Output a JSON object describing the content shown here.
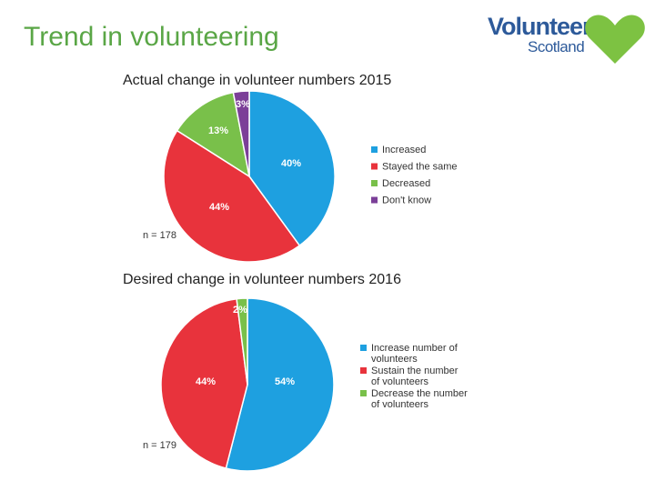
{
  "slide": {
    "title": "Trend in volunteering",
    "logo": {
      "line1": "Volunteer",
      "line2": "Scotland",
      "heart_color": "#7dc242",
      "text_color": "#2d5a9a"
    }
  },
  "chart_data": [
    {
      "type": "pie",
      "title": "Actual change in volunteer numbers 2015",
      "note": "n = 178",
      "slices": [
        {
          "label": "Increased",
          "value": 40,
          "display": "40%",
          "color": "#1ea0e0"
        },
        {
          "label": "Stayed the same",
          "value": 44,
          "display": "44%",
          "color": "#e8333c"
        },
        {
          "label": "Decreased",
          "value": 13,
          "display": "13%",
          "color": "#79c04a"
        },
        {
          "label": "Don't know",
          "value": 3,
          "display": "3%",
          "color": "#7b3f98"
        }
      ],
      "legend_placement": "right"
    },
    {
      "type": "pie",
      "title": "Desired change in volunteer numbers 2016",
      "note": "n = 179",
      "slices": [
        {
          "label": "Increase number of volunteers",
          "value": 54,
          "display": "54%",
          "color": "#1ea0e0"
        },
        {
          "label": "Sustain the number of volunteers",
          "value": 44,
          "display": "44%",
          "color": "#e8333c"
        },
        {
          "label": "Decrease the number of volunteers",
          "value": 2,
          "display": "2%",
          "color": "#79c04a"
        }
      ],
      "legend_placement": "right"
    }
  ]
}
